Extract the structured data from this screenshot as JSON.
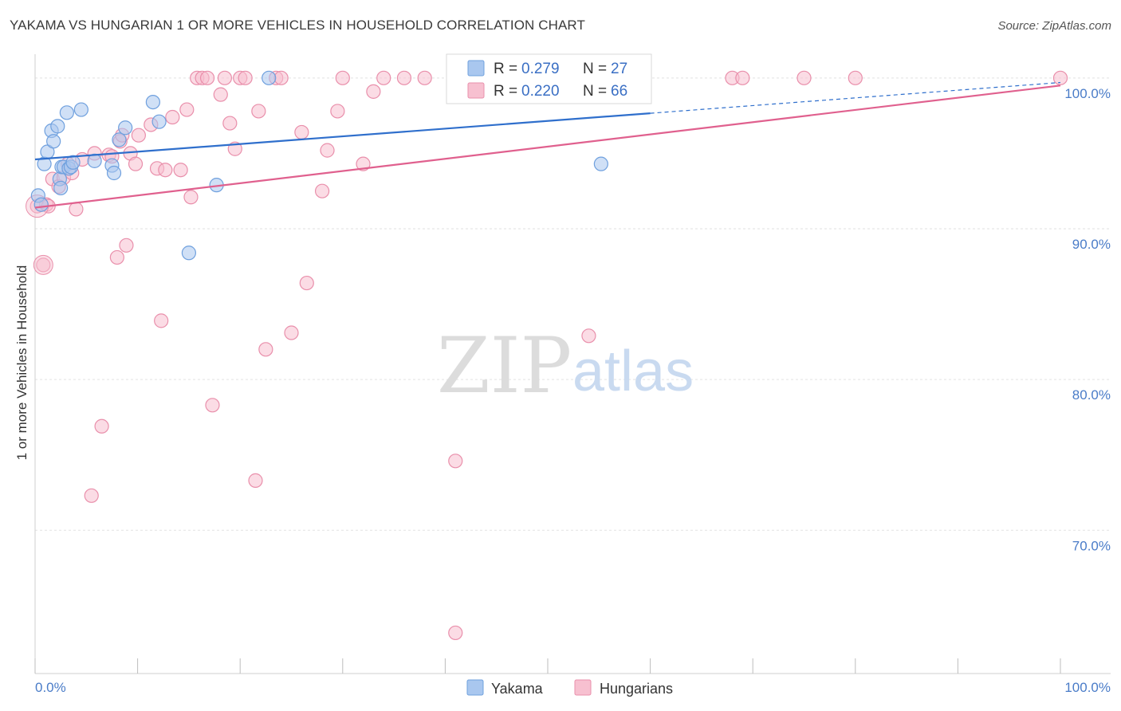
{
  "title": "YAKAMA VS HUNGARIAN 1 OR MORE VEHICLES IN HOUSEHOLD CORRELATION CHART",
  "source": "Source: ZipAtlas.com",
  "watermark": {
    "zip": "ZIP",
    "atlas": "atlas"
  },
  "chart_data": {
    "type": "scatter",
    "title": "YAKAMA VS HUNGARIAN 1 OR MORE VEHICLES IN HOUSEHOLD CORRELATION CHART",
    "xlabel": "",
    "ylabel": "1 or more Vehicles in Household",
    "xlim": [
      0,
      100
    ],
    "ylim": [
      60.5,
      102
    ],
    "x_tick_labels": [
      "0.0%",
      "100.0%"
    ],
    "y_ticks": [
      {
        "value": 100,
        "label": "100.0%"
      },
      {
        "value": 90,
        "label": "90.0%"
      },
      {
        "value": 80,
        "label": "80.0%"
      },
      {
        "value": 70,
        "label": "70.0%"
      }
    ],
    "legend": {
      "placement": "top-center",
      "entries": [
        {
          "name": "Yakama",
          "r_label": "R =",
          "r": "0.279",
          "n_label": "N =",
          "n": "27",
          "color": "#a9c7ef",
          "stroke": "#6fa0de"
        },
        {
          "name": "Hungarians",
          "r_label": "R =",
          "r": "0.220",
          "n_label": "N =",
          "n": "66",
          "color": "#f7c0d0",
          "stroke": "#e98fab"
        }
      ]
    },
    "series": [
      {
        "name": "Yakama",
        "color": "#a9c7ef",
        "stroke": "#6fa0de",
        "trend": {
          "x0": 0,
          "y0": 94.6,
          "x1": 100,
          "y1": 99.7,
          "solid_until": 60,
          "color": "#2f6fcc"
        },
        "points": [
          [
            0.3,
            92.2
          ],
          [
            0.6,
            91.6
          ],
          [
            0.9,
            94.3
          ],
          [
            1.2,
            95.1
          ],
          [
            1.6,
            96.5
          ],
          [
            1.8,
            95.8
          ],
          [
            2.2,
            96.8
          ],
          [
            2.4,
            93.3
          ],
          [
            2.5,
            92.7
          ],
          [
            2.6,
            94.1
          ],
          [
            2.8,
            94.1
          ],
          [
            3.1,
            97.7
          ],
          [
            3.3,
            94.0
          ],
          [
            3.5,
            94.1
          ],
          [
            3.7,
            94.4
          ],
          [
            4.5,
            97.9
          ],
          [
            5.8,
            94.5
          ],
          [
            7.5,
            94.2
          ],
          [
            7.7,
            93.7
          ],
          [
            8.2,
            95.9
          ],
          [
            8.8,
            96.7
          ],
          [
            11.5,
            98.4
          ],
          [
            12.1,
            97.1
          ],
          [
            15.0,
            88.4
          ],
          [
            17.7,
            92.9
          ],
          [
            22.8,
            100.0
          ],
          [
            55.2,
            94.3
          ]
        ]
      },
      {
        "name": "Hungarians",
        "color": "#f7c0d0",
        "stroke": "#e98fab",
        "trend": {
          "x0": 0,
          "y0": 91.4,
          "x1": 100,
          "y1": 99.5,
          "solid_until": 100,
          "color": "#e0608e"
        },
        "points": [
          [
            0.2,
            91.5
          ],
          [
            0.8,
            87.6
          ],
          [
            1.1,
            91.6
          ],
          [
            1.3,
            91.5
          ],
          [
            1.7,
            93.3
          ],
          [
            2.3,
            92.8
          ],
          [
            2.8,
            93.4
          ],
          [
            3.2,
            94.3
          ],
          [
            3.6,
            93.7
          ],
          [
            4.0,
            91.3
          ],
          [
            4.6,
            94.6
          ],
          [
            5.5,
            72.3
          ],
          [
            5.8,
            95.0
          ],
          [
            6.5,
            76.9
          ],
          [
            7.2,
            94.9
          ],
          [
            7.5,
            94.8
          ],
          [
            8.0,
            88.1
          ],
          [
            8.3,
            95.8
          ],
          [
            8.5,
            96.2
          ],
          [
            8.9,
            88.9
          ],
          [
            9.3,
            95.0
          ],
          [
            9.8,
            94.3
          ],
          [
            10.1,
            96.2
          ],
          [
            11.3,
            96.9
          ],
          [
            11.9,
            94.0
          ],
          [
            12.3,
            83.9
          ],
          [
            12.7,
            93.9
          ],
          [
            13.4,
            97.4
          ],
          [
            14.2,
            93.9
          ],
          [
            14.8,
            97.9
          ],
          [
            15.2,
            92.1
          ],
          [
            15.8,
            100.0
          ],
          [
            16.3,
            100.0
          ],
          [
            16.8,
            100.0
          ],
          [
            17.3,
            78.3
          ],
          [
            18.1,
            98.9
          ],
          [
            18.5,
            100.0
          ],
          [
            19.0,
            97.0
          ],
          [
            19.5,
            95.3
          ],
          [
            20.0,
            100.0
          ],
          [
            20.5,
            100.0
          ],
          [
            21.5,
            73.3
          ],
          [
            21.8,
            97.8
          ],
          [
            22.5,
            82.0
          ],
          [
            23.5,
            100.0
          ],
          [
            24.0,
            100.0
          ],
          [
            25.0,
            83.1
          ],
          [
            26.0,
            96.4
          ],
          [
            26.5,
            86.4
          ],
          [
            28.0,
            92.5
          ],
          [
            28.5,
            95.2
          ],
          [
            29.5,
            97.8
          ],
          [
            30.0,
            100.0
          ],
          [
            32.0,
            94.3
          ],
          [
            33.0,
            99.1
          ],
          [
            34.0,
            100.0
          ],
          [
            36.0,
            100.0
          ],
          [
            38.0,
            100.0
          ],
          [
            41.0,
            74.6
          ],
          [
            41.0,
            63.2
          ],
          [
            54.0,
            82.9
          ],
          [
            68.0,
            100.0
          ],
          [
            69.0,
            100.0
          ],
          [
            75.0,
            100.0
          ],
          [
            80.0,
            100.0
          ],
          [
            100.0,
            100.0
          ]
        ]
      }
    ]
  }
}
